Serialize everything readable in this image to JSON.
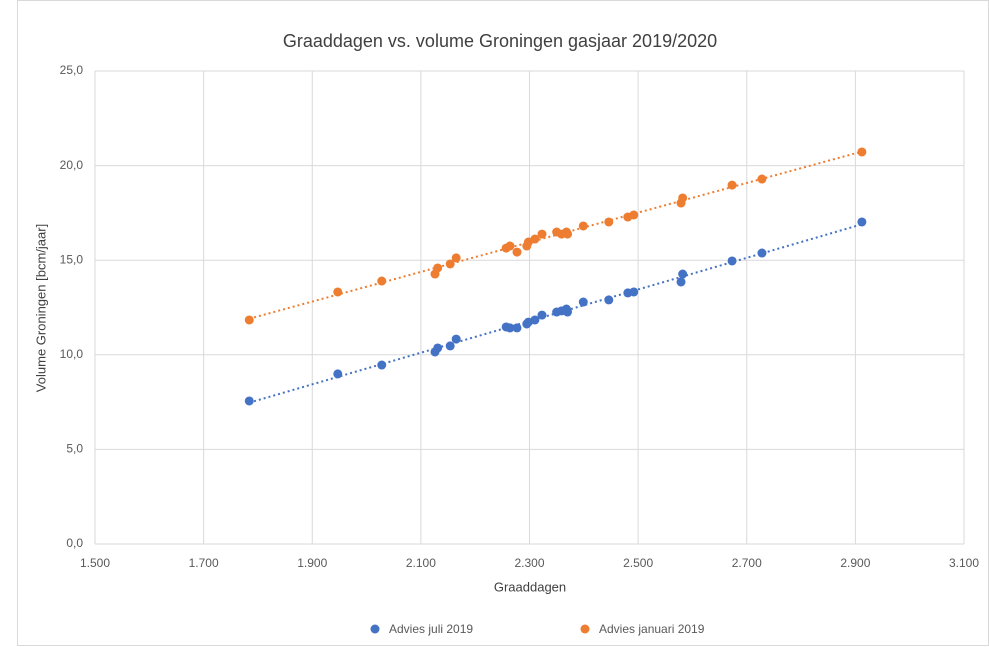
{
  "chart_data": {
    "type": "scatter",
    "title": "Graaddagen vs. volume Groningen gasjaar 2019/2020",
    "xlabel": "Graaddagen",
    "ylabel": "Volume Groningen [bcm/jaar]",
    "xlim": [
      1500,
      3100
    ],
    "xticks": [
      {
        "value": 1500,
        "label": "1.500"
      },
      {
        "value": 1700,
        "label": "1.700"
      },
      {
        "value": 1900,
        "label": "1.900"
      },
      {
        "value": 2100,
        "label": "2.100"
      },
      {
        "value": 2300,
        "label": "2.300"
      },
      {
        "value": 2500,
        "label": "2.500"
      },
      {
        "value": 2700,
        "label": "2.700"
      },
      {
        "value": 2900,
        "label": "2.900"
      },
      {
        "value": 3100,
        "label": "3.100"
      }
    ],
    "ylim": [
      0,
      25
    ],
    "yticks": [
      {
        "value": 0,
        "label": "0,0"
      },
      {
        "value": 5,
        "label": "5,0"
      },
      {
        "value": 10,
        "label": "10,0"
      },
      {
        "value": 15,
        "label": "15,0"
      },
      {
        "value": 20,
        "label": "20,0"
      },
      {
        "value": 25,
        "label": "25,0"
      }
    ],
    "grid": true,
    "trendline": true,
    "legend": "bottom",
    "series": [
      {
        "name": "Advies juli 2019",
        "color": "#4472c4",
        "x": [
          1784,
          1947,
          2028,
          2126,
          2131,
          2154,
          2165,
          2257,
          2264,
          2277,
          2295,
          2298,
          2310,
          2323,
          2350,
          2359,
          2368,
          2370,
          2399,
          2446,
          2481,
          2492,
          2579,
          2582,
          2673,
          2728,
          2912
        ],
        "values": [
          7.56,
          8.99,
          9.46,
          10.15,
          10.36,
          10.47,
          10.83,
          11.47,
          11.42,
          11.42,
          11.63,
          11.73,
          11.84,
          12.1,
          12.26,
          12.32,
          12.42,
          12.26,
          12.79,
          12.9,
          13.27,
          13.32,
          13.85,
          14.27,
          14.96,
          15.38,
          17.02
        ]
      },
      {
        "name": "Advies januari 2019",
        "color": "#ed7d31",
        "x": [
          1784,
          1947,
          2028,
          2126,
          2131,
          2154,
          2165,
          2257,
          2264,
          2277,
          2295,
          2298,
          2310,
          2323,
          2350,
          2359,
          2368,
          2370,
          2399,
          2446,
          2481,
          2492,
          2579,
          2582,
          2673,
          2728,
          2912
        ],
        "values": [
          11.84,
          13.32,
          13.9,
          14.27,
          14.59,
          14.8,
          15.12,
          15.64,
          15.75,
          15.43,
          15.75,
          15.96,
          16.12,
          16.38,
          16.49,
          16.38,
          16.49,
          16.38,
          16.81,
          17.02,
          17.28,
          17.39,
          18.02,
          18.29,
          18.97,
          19.29,
          20.72
        ]
      }
    ]
  }
}
